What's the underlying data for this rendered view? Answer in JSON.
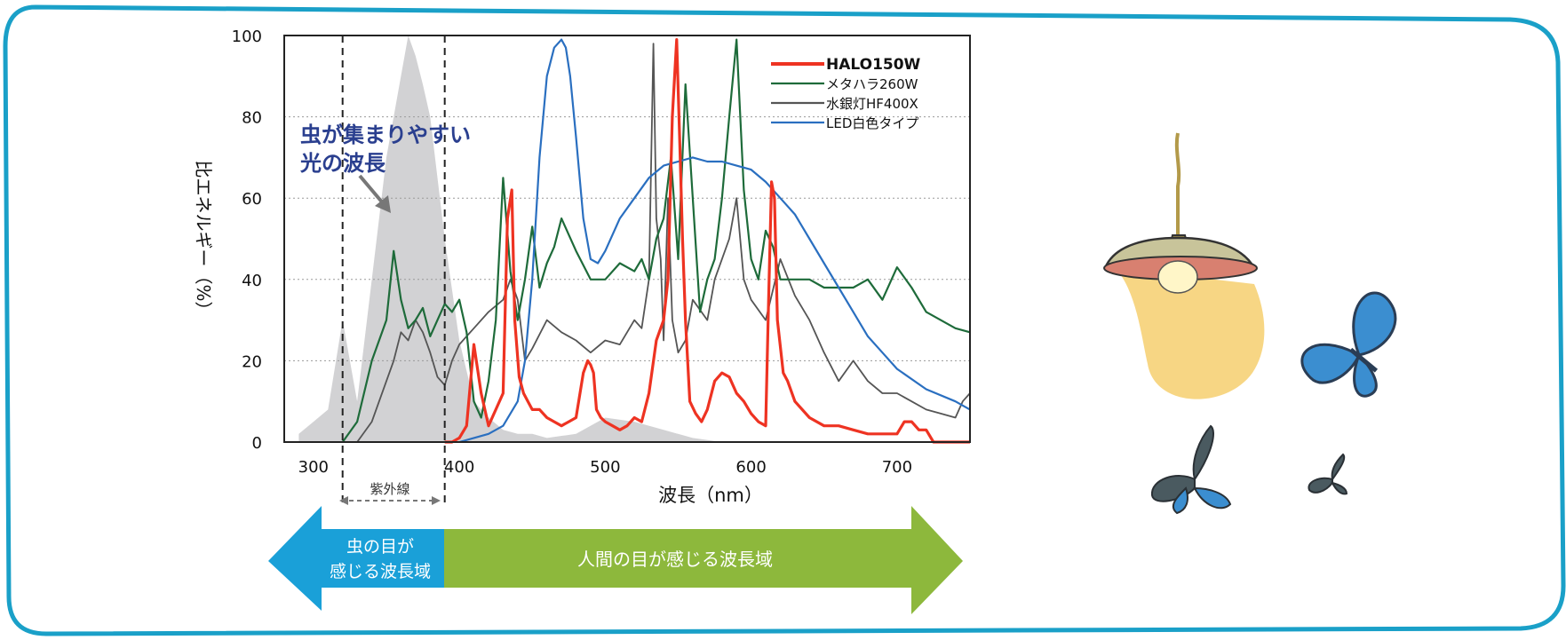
{
  "chart_data": {
    "type": "line",
    "xlabel": "波長（nm）",
    "ylabel": "比エネルギー（%）",
    "xlim": [
      280,
      750
    ],
    "ylim": [
      0,
      100
    ],
    "x_ticks": [
      300,
      400,
      500,
      600,
      700
    ],
    "y_ticks": [
      0,
      20,
      40,
      60,
      80,
      100
    ],
    "grid": true,
    "legend_position": "top-right",
    "annotation": {
      "line1": "虫が集まりやすい",
      "line2": "光の波長"
    },
    "uv_label": "紫外線",
    "uv_range": [
      320,
      390
    ],
    "insect_sensitivity_curve": {
      "x": [
        290,
        300,
        310,
        320,
        330,
        340,
        350,
        360,
        365,
        370,
        375,
        380,
        390,
        400,
        410,
        420,
        430,
        440,
        450,
        460,
        480,
        500,
        520,
        540,
        560,
        580,
        600
      ],
      "y": [
        2,
        5,
        8,
        30,
        10,
        40,
        70,
        90,
        100,
        95,
        88,
        80,
        50,
        25,
        10,
        6,
        3,
        2,
        2,
        1,
        2,
        6,
        5,
        3,
        1,
        0,
        0
      ]
    },
    "series": [
      {
        "name": "HALO150W",
        "x": [
          390,
          395,
          400,
          405,
          410,
          415,
          420,
          425,
          430,
          433,
          436,
          438,
          441,
          444,
          447,
          450,
          455,
          460,
          465,
          470,
          475,
          480,
          485,
          488,
          490,
          492,
          494,
          497,
          500,
          505,
          510,
          515,
          520,
          525,
          530,
          535,
          540,
          543,
          546,
          549,
          551,
          553,
          555,
          558,
          562,
          566,
          570,
          575,
          580,
          585,
          590,
          595,
          600,
          605,
          610,
          612,
          614,
          616,
          618,
          622,
          625,
          630,
          640,
          650,
          660,
          670,
          680,
          690,
          700,
          705,
          710,
          715,
          720,
          725,
          750
        ],
        "y": [
          0,
          0,
          1,
          4,
          24,
          12,
          4,
          8,
          12,
          55,
          62,
          30,
          16,
          12,
          10,
          8,
          8,
          6,
          5,
          4,
          5,
          6,
          17,
          20,
          19,
          17,
          8,
          6,
          5,
          4,
          3,
          4,
          6,
          5,
          12,
          25,
          30,
          40,
          80,
          99,
          75,
          50,
          30,
          10,
          7,
          5,
          8,
          15,
          17,
          16,
          12,
          10,
          7,
          5,
          4,
          35,
          64,
          60,
          30,
          17,
          15,
          10,
          6,
          4,
          4,
          3,
          2,
          2,
          2,
          5,
          5,
          3,
          3,
          0,
          0
        ]
      },
      {
        "name": "メタハラ260W",
        "x": [
          320,
          330,
          340,
          350,
          355,
          360,
          365,
          370,
          375,
          380,
          385,
          390,
          395,
          400,
          405,
          410,
          415,
          420,
          425,
          430,
          435,
          440,
          445,
          450,
          455,
          460,
          465,
          470,
          480,
          490,
          500,
          510,
          520,
          525,
          530,
          535,
          540,
          545,
          550,
          555,
          560,
          565,
          570,
          575,
          580,
          585,
          590,
          595,
          600,
          605,
          610,
          615,
          620,
          630,
          640,
          650,
          660,
          670,
          680,
          690,
          700,
          710,
          720,
          740,
          750
        ],
        "y": [
          0,
          5,
          20,
          30,
          47,
          35,
          28,
          30,
          33,
          26,
          30,
          34,
          32,
          35,
          27,
          10,
          6,
          15,
          30,
          65,
          42,
          30,
          40,
          53,
          38,
          44,
          48,
          55,
          47,
          40,
          40,
          44,
          42,
          45,
          40,
          50,
          55,
          70,
          45,
          88,
          60,
          32,
          40,
          45,
          60,
          80,
          99,
          62,
          45,
          40,
          52,
          48,
          40,
          40,
          40,
          38,
          38,
          38,
          40,
          35,
          43,
          38,
          32,
          28,
          27
        ]
      },
      {
        "name": "水銀灯HF400X",
        "x": [
          330,
          340,
          350,
          355,
          360,
          365,
          370,
          375,
          380,
          385,
          390,
          395,
          400,
          405,
          410,
          420,
          430,
          435,
          440,
          445,
          450,
          460,
          470,
          480,
          490,
          500,
          510,
          520,
          525,
          530,
          533,
          535,
          538,
          540,
          543,
          546,
          550,
          555,
          560,
          570,
          575,
          580,
          585,
          590,
          595,
          600,
          610,
          620,
          630,
          640,
          650,
          660,
          670,
          680,
          690,
          700,
          710,
          720,
          730,
          740,
          745,
          750
        ],
        "y": [
          0,
          5,
          15,
          20,
          27,
          25,
          30,
          27,
          22,
          16,
          14,
          20,
          24,
          26,
          28,
          32,
          35,
          40,
          35,
          20,
          23,
          30,
          27,
          25,
          22,
          25,
          24,
          30,
          28,
          40,
          98,
          55,
          45,
          25,
          60,
          30,
          22,
          25,
          35,
          30,
          40,
          45,
          50,
          60,
          40,
          35,
          30,
          45,
          36,
          30,
          22,
          15,
          20,
          15,
          12,
          12,
          10,
          8,
          7,
          6,
          10,
          12
        ]
      },
      {
        "name": "LED白色タイプ",
        "x": [
          400,
          410,
          420,
          430,
          440,
          445,
          450,
          455,
          460,
          465,
          470,
          473,
          476,
          480,
          485,
          490,
          495,
          500,
          510,
          520,
          530,
          540,
          550,
          560,
          570,
          580,
          590,
          600,
          610,
          620,
          630,
          640,
          650,
          660,
          670,
          680,
          690,
          700,
          720,
          740,
          750
        ],
        "y": [
          0,
          1,
          2,
          4,
          10,
          20,
          40,
          70,
          90,
          97,
          99,
          97,
          90,
          75,
          55,
          45,
          44,
          47,
          55,
          60,
          65,
          68,
          69,
          70,
          69,
          69,
          68,
          67,
          64,
          60,
          56,
          50,
          44,
          38,
          32,
          26,
          22,
          18,
          13,
          10,
          8
        ]
      }
    ]
  },
  "bottom_banner": {
    "insect_range_line1": "虫の目が",
    "insect_range_line2": "感じる波長域",
    "human_range": "人間の目が感じる波長域"
  },
  "colors": {
    "frame_border": "#1aa0c8",
    "halo": "#ee3322",
    "metal_halide": "#1e6b3a",
    "mercury": "#555555",
    "led": "#2a6fc0",
    "insect_area": "#d2d2d4",
    "arrow_blue": "#1aa0d8",
    "arrow_green": "#8db83c",
    "annotation_text": "#2a3f8f"
  },
  "decor_icons": [
    "hanging-lamp-icon",
    "blue-butterfly-icon",
    "moth-icon",
    "small-moth-icon"
  ]
}
